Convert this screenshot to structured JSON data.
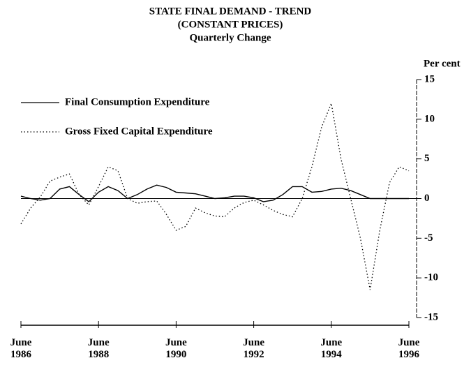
{
  "chart_data": {
    "type": "line",
    "title": "STATE FINAL DEMAND - TREND",
    "subtitle": "(CONSTANT PRICES)",
    "subtitle2": "Quarterly Change",
    "y_axis_label": "Per cent",
    "x": [
      1986.5,
      1986.75,
      1987,
      1987.25,
      1987.5,
      1987.75,
      1988,
      1988.25,
      1988.5,
      1988.75,
      1989,
      1989.25,
      1989.5,
      1989.75,
      1990,
      1990.25,
      1990.5,
      1990.75,
      1991,
      1991.25,
      1991.5,
      1991.75,
      1992,
      1992.25,
      1992.5,
      1992.75,
      1993,
      1993.25,
      1993.5,
      1993.75,
      1994,
      1994.25,
      1994.5,
      1994.75,
      1995,
      1995.25,
      1995.5,
      1995.75,
      1996,
      1996.25,
      1996.5
    ],
    "series": [
      {
        "name": "Final Consumption Expenditure",
        "color": "#000000",
        "style": "solid",
        "values": [
          0.3,
          0,
          -0.2,
          0,
          1.2,
          1.5,
          0.5,
          -0.4,
          0.8,
          1.5,
          1.0,
          0,
          0.5,
          1.2,
          1.7,
          1.4,
          0.8,
          0.7,
          0.6,
          0.3,
          0,
          0.1,
          0.3,
          0.3,
          0.1,
          -0.4,
          -0.2,
          0.5,
          1.5,
          1.5,
          0.8,
          0.9,
          1.2,
          1.3,
          1.0,
          0.5,
          0,
          0,
          0,
          0,
          0
        ]
      },
      {
        "name": "Gross Fixed Capital Expenditure",
        "color": "#000000",
        "style": "dotted",
        "values": [
          -3.2,
          -1.2,
          0.2,
          2.2,
          2.7,
          3.1,
          0.5,
          -0.8,
          1.5,
          4,
          3.5,
          0,
          -0.6,
          -0.4,
          -0.3,
          -2,
          -4,
          -3.5,
          -1.2,
          -1.8,
          -2.2,
          -2.3,
          -1.2,
          -0.5,
          -0.2,
          -0.8,
          -1.5,
          -2,
          -2.3,
          0,
          4,
          9,
          12,
          5,
          0,
          -5,
          -11.5,
          -4,
          2,
          4,
          3.5
        ]
      }
    ],
    "xlim": [
      1986.5,
      1996.5
    ],
    "xticks": [
      {
        "value": 1986.5,
        "label": "June 1986"
      },
      {
        "value": 1988.5,
        "label": "June 1988"
      },
      {
        "value": 1990.5,
        "label": "June 1990"
      },
      {
        "value": 1992.5,
        "label": "June 1992"
      },
      {
        "value": 1994.5,
        "label": "June 1994"
      },
      {
        "value": 1996.5,
        "label": "June 1996"
      }
    ],
    "ylim": [
      -15,
      15
    ],
    "yticks": [
      15,
      10,
      5,
      0,
      -5,
      -10,
      -15
    ],
    "y_axis_side": "right",
    "legend": "upper left"
  }
}
